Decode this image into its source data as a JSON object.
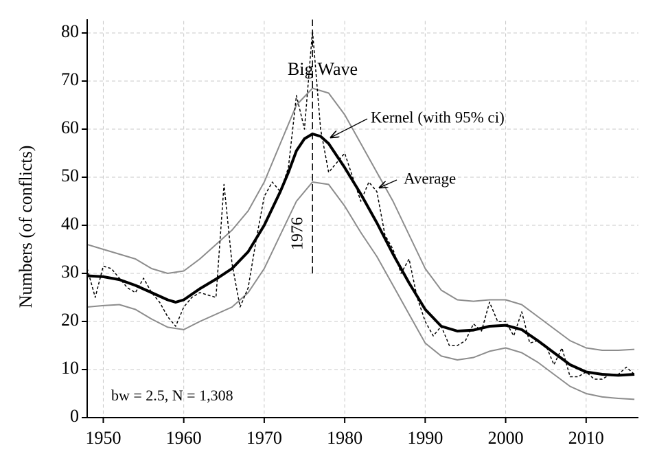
{
  "chart_data": {
    "type": "line",
    "y_label": "Numbers (of conflicts)",
    "xlim": [
      1948,
      2016.5
    ],
    "ylim": [
      0,
      82.5
    ],
    "xticks": [
      1950,
      1960,
      1970,
      1980,
      1990,
      2000,
      2010
    ],
    "yticks": [
      0,
      10,
      20,
      30,
      40,
      50,
      60,
      70,
      80
    ],
    "grid": true,
    "series": [
      {
        "name": "Kernel (with 95% ci)",
        "color": "#000000",
        "width": 4,
        "dash": "none",
        "x": [
          1948,
          1950,
          1952,
          1954,
          1956,
          1958,
          1959,
          1960,
          1962,
          1964,
          1966,
          1968,
          1970,
          1972,
          1973,
          1974,
          1975,
          1976,
          1977,
          1978,
          1980,
          1982,
          1984,
          1986,
          1988,
          1990,
          1992,
          1994,
          1996,
          1998,
          2000,
          2002,
          2004,
          2006,
          2008,
          2010,
          2012,
          2014,
          2016
        ],
        "values": [
          29.5,
          29.3,
          28.7,
          27.5,
          26,
          24.5,
          24,
          24.5,
          26.8,
          28.8,
          31,
          34.5,
          40,
          47,
          51,
          55.5,
          58,
          59,
          58.5,
          57,
          52,
          46.5,
          40.5,
          34,
          28,
          22.5,
          19,
          18,
          18.2,
          19,
          19.2,
          18.3,
          16,
          13.5,
          11,
          9.5,
          9,
          8.8,
          9
        ]
      },
      {
        "name": "Upper 95% ci",
        "color": "#8c8c8c",
        "width": 2,
        "dash": "none",
        "x": [
          1948,
          1950,
          1952,
          1954,
          1956,
          1958,
          1960,
          1962,
          1964,
          1966,
          1968,
          1970,
          1972,
          1974,
          1976,
          1978,
          1980,
          1982,
          1984,
          1986,
          1988,
          1990,
          1992,
          1994,
          1996,
          1998,
          2000,
          2002,
          2004,
          2006,
          2008,
          2010,
          2012,
          2014,
          2016
        ],
        "values": [
          36,
          35,
          34,
          33,
          31,
          30,
          30.5,
          33,
          36,
          39,
          43,
          49,
          57,
          65,
          68.5,
          67.5,
          63,
          57,
          51,
          45,
          38,
          31,
          26.5,
          24.5,
          24.2,
          24.5,
          24.5,
          23.5,
          21,
          18.5,
          16,
          14.5,
          14,
          14,
          14.2
        ]
      },
      {
        "name": "Lower 95% ci",
        "color": "#8c8c8c",
        "width": 2,
        "dash": "none",
        "x": [
          1948,
          1950,
          1952,
          1954,
          1956,
          1958,
          1960,
          1962,
          1964,
          1966,
          1968,
          1970,
          1972,
          1974,
          1976,
          1978,
          1980,
          1982,
          1984,
          1986,
          1988,
          1990,
          1992,
          1994,
          1996,
          1998,
          2000,
          2002,
          2004,
          2006,
          2008,
          2010,
          2012,
          2014,
          2016
        ],
        "values": [
          23,
          23.3,
          23.5,
          22.5,
          20.5,
          18.8,
          18.3,
          20,
          21.5,
          23,
          26,
          31,
          38,
          45,
          49,
          48.5,
          44,
          38.5,
          33.5,
          27.5,
          21.5,
          15.5,
          12.8,
          12,
          12.5,
          13.8,
          14.5,
          13.5,
          11.5,
          9,
          6.5,
          5,
          4.3,
          4,
          3.8
        ]
      },
      {
        "name": "Average",
        "color": "#000000",
        "width": 1.5,
        "dash": "4 3",
        "x": [
          1948,
          1949,
          1950,
          1951,
          1952,
          1953,
          1954,
          1955,
          1956,
          1957,
          1958,
          1959,
          1960,
          1961,
          1962,
          1963,
          1964,
          1965,
          1966,
          1967,
          1968,
          1969,
          1970,
          1971,
          1972,
          1973,
          1974,
          1975,
          1976,
          1977,
          1978,
          1979,
          1980,
          1981,
          1982,
          1983,
          1984,
          1985,
          1986,
          1987,
          1988,
          1989,
          1990,
          1991,
          1992,
          1993,
          1994,
          1995,
          1996,
          1997,
          1998,
          1999,
          2000,
          2001,
          2002,
          2003,
          2004,
          2005,
          2006,
          2007,
          2008,
          2009,
          2010,
          2011,
          2012,
          2013,
          2014,
          2015,
          2016
        ],
        "values": [
          31,
          25,
          31.5,
          31,
          29,
          27,
          26,
          29,
          26,
          24,
          21,
          19,
          23,
          25,
          26,
          25.5,
          25,
          48.5,
          32,
          23,
          27,
          37,
          46,
          49,
          47,
          52,
          67,
          60,
          80.5,
          60,
          51,
          53,
          55,
          50,
          45,
          49,
          47,
          38,
          35,
          30,
          33,
          25,
          20,
          17,
          19,
          15,
          15,
          16,
          19.5,
          18,
          24,
          20,
          20,
          17,
          22,
          15.5,
          16,
          15,
          11,
          14.5,
          8.5,
          8.5,
          9.5,
          8,
          8,
          9,
          9,
          10.5,
          9
        ]
      }
    ],
    "vline": {
      "x": 1976,
      "label": "1976"
    },
    "annotations": {
      "big_wave": "Big Wave",
      "kernel": "Kernel (with 95% ci)",
      "average": "Average",
      "note": "bw = 2.5, N = 1,308"
    }
  }
}
